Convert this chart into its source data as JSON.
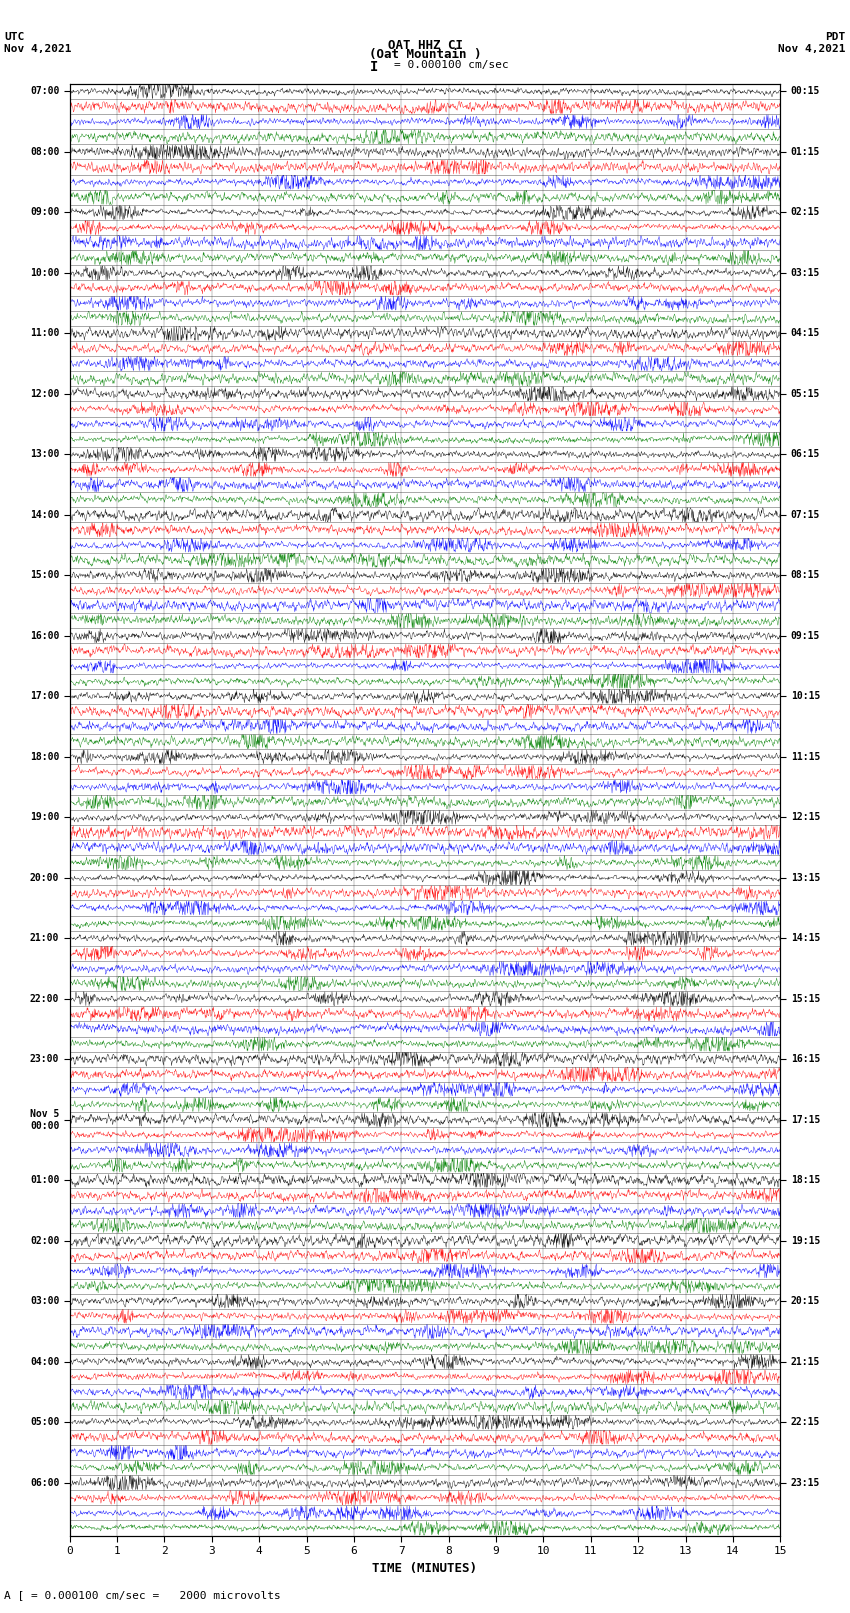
{
  "title_line1": "OAT HHZ CI",
  "title_line2": "(Oat Mountain )",
  "scale_label": "= 0.000100 cm/sec",
  "footer_label": "A [ = 0.000100 cm/sec =   2000 microvolts",
  "utc_label": "UTC",
  "utc_date": "Nov 4,2021",
  "pdt_label": "PDT",
  "pdt_date": "Nov 4,2021",
  "xlabel": "TIME (MINUTES)",
  "left_times": [
    "07:00",
    "08:00",
    "09:00",
    "10:00",
    "11:00",
    "12:00",
    "13:00",
    "14:00",
    "15:00",
    "16:00",
    "17:00",
    "18:00",
    "19:00",
    "20:00",
    "21:00",
    "22:00",
    "23:00",
    "Nov 5\n00:00",
    "01:00",
    "02:00",
    "03:00",
    "04:00",
    "05:00",
    "06:00"
  ],
  "right_times": [
    "00:15",
    "01:15",
    "02:15",
    "03:15",
    "04:15",
    "05:15",
    "06:15",
    "07:15",
    "08:15",
    "09:15",
    "10:15",
    "11:15",
    "12:15",
    "13:15",
    "14:15",
    "15:15",
    "16:15",
    "17:15",
    "18:15",
    "19:15",
    "20:15",
    "21:15",
    "22:15",
    "23:15"
  ],
  "n_rows": 96,
  "n_cols": 1800,
  "colors": [
    "black",
    "red",
    "blue",
    "green"
  ],
  "amplitude": 0.46,
  "bg_color": "white",
  "minutes_per_row": 15
}
